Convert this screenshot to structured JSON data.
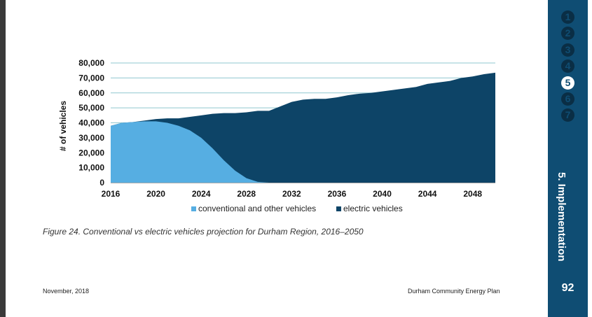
{
  "sidebar": {
    "steps": [
      "1",
      "2",
      "3",
      "4",
      "5",
      "6",
      "7"
    ],
    "active_step": "5",
    "section_title": "5. Implementation",
    "page_number": "92"
  },
  "caption": "Figure 24. Conventional vs electric vehicles projection for Durham Region, 2016–2050",
  "footer": {
    "date": "November, 2018",
    "document": "Durham Community Energy Plan"
  },
  "colors": {
    "conventional": "#56aee2",
    "electric": "#0d4467",
    "grid": "#8fc7cf"
  },
  "chart_data": {
    "type": "area",
    "title": "",
    "xlabel": "",
    "ylabel": "# of vehicles",
    "x_ticks": [
      "2016",
      "2020",
      "2024",
      "2028",
      "2032",
      "2036",
      "2040",
      "2044",
      "2048"
    ],
    "y_ticks": [
      "0",
      "10,000",
      "20,000",
      "30,000",
      "40,000",
      "50,000",
      "60,000",
      "70,000",
      "80,000"
    ],
    "xlim": [
      2016,
      2050
    ],
    "ylim": [
      0,
      80000
    ],
    "stacked": true,
    "legend_position": "bottom",
    "x": [
      2016,
      2017,
      2018,
      2019,
      2020,
      2021,
      2022,
      2023,
      2024,
      2025,
      2026,
      2027,
      2028,
      2029,
      2030,
      2031,
      2032,
      2033,
      2034,
      2035,
      2036,
      2037,
      2038,
      2039,
      2040,
      2041,
      2042,
      2043,
      2044,
      2045,
      2046,
      2047,
      2048,
      2049,
      2050
    ],
    "series": [
      {
        "name": "conventional and other vehicles",
        "values": [
          38000,
          40000,
          40500,
          41000,
          41000,
          40000,
          38000,
          35000,
          30000,
          23000,
          15000,
          8000,
          3000,
          500,
          0,
          0,
          0,
          0,
          0,
          0,
          0,
          0,
          0,
          0,
          0,
          0,
          0,
          0,
          0,
          0,
          0,
          0,
          0,
          0,
          0
        ]
      },
      {
        "name": "electric vehicles",
        "values": [
          0,
          0,
          0,
          500,
          1500,
          3000,
          5000,
          9000,
          15000,
          23000,
          31500,
          38500,
          44000,
          47500,
          48000,
          51000,
          54000,
          55500,
          56000,
          56000,
          57000,
          58500,
          59500,
          60000,
          61000,
          62000,
          63000,
          64000,
          66000,
          67000,
          68000,
          70000,
          71000,
          72500,
          73500
        ]
      }
    ]
  }
}
